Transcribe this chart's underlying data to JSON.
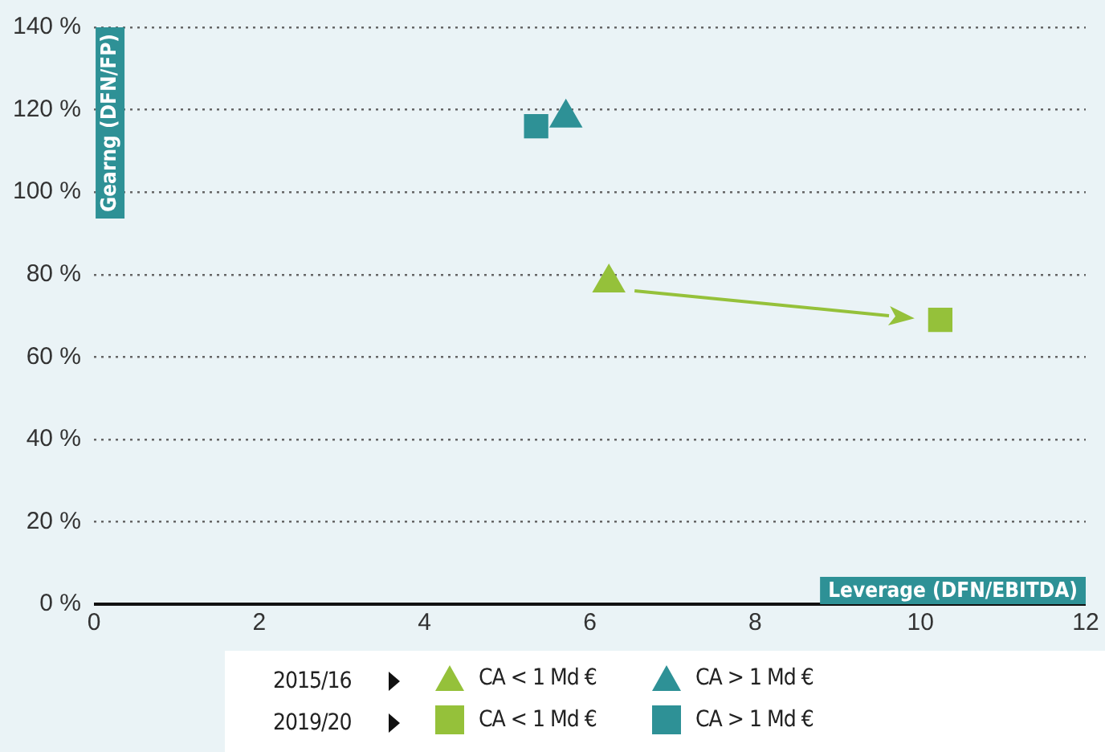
{
  "chart_data": {
    "type": "scatter",
    "xlabel": "Leverage (DFN/EBITDA)",
    "ylabel": "Gearng (DFN/FP)",
    "xlim": [
      0,
      12
    ],
    "xticks": [
      0,
      2,
      4,
      6,
      8,
      10,
      12
    ],
    "ylim": [
      0,
      140
    ],
    "yticks": [
      {
        "value": 0,
        "label": "0 %"
      },
      {
        "value": 20,
        "label": "20 %"
      },
      {
        "value": 40,
        "label": "40 %"
      },
      {
        "value": 60,
        "label": "60 %"
      },
      {
        "value": 80,
        "label": "80 %"
      },
      {
        "value": 100,
        "label": "100 %"
      },
      {
        "value": 120,
        "label": "120 %"
      },
      {
        "value": 140,
        "label": "140 %"
      }
    ],
    "grid": "y",
    "legend": "bottom",
    "annotations": [
      "2015/16",
      "2019/20"
    ],
    "series": [
      {
        "name": "CA < 1 Md €",
        "color": "#95c13a",
        "marker": "triangle",
        "x": [
          6.23
        ],
        "values": [
          78
        ]
      },
      {
        "name": "CA > 1 Md €",
        "color": "#2e9196",
        "marker": "triangle",
        "x": [
          5.71
        ],
        "values": [
          118
        ]
      },
      {
        "name": "CA < 1 Md €",
        "color": "#95c13a",
        "marker": "square",
        "x": [
          10.24
        ],
        "values": [
          69
        ]
      },
      {
        "name": "CA > 1 Md €",
        "color": "#2e9196",
        "marker": "square",
        "x": [
          5.35
        ],
        "values": [
          116
        ]
      }
    ]
  }
}
